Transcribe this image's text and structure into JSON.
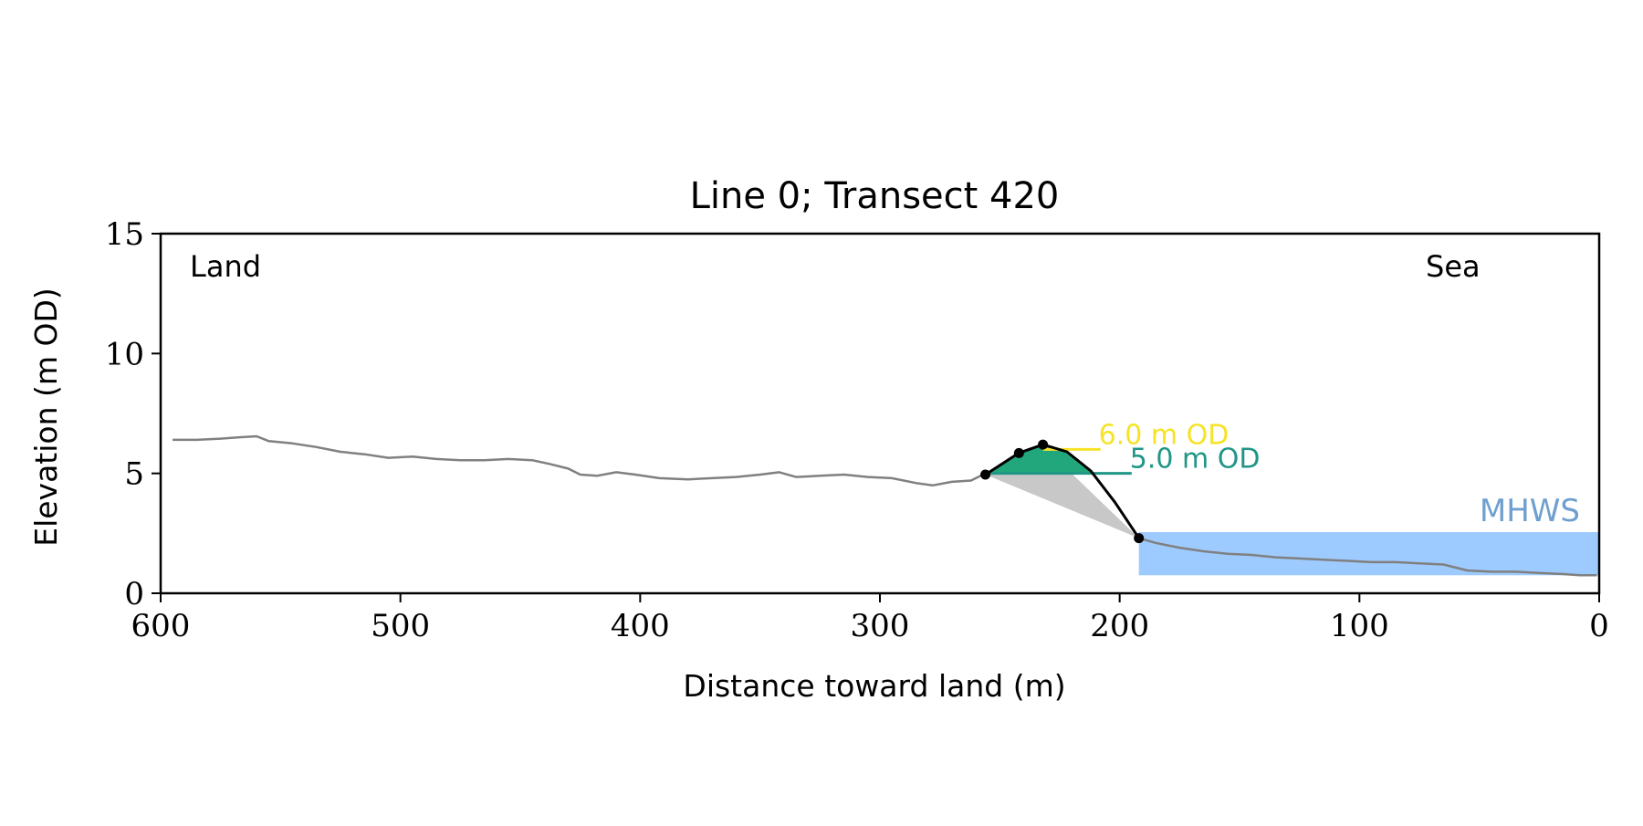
{
  "chart_data": {
    "type": "line",
    "title": "Line 0; Transect 420",
    "xlabel": "Distance toward land (m)",
    "ylabel": "Elevation (m OD)",
    "xlim": [
      600,
      0
    ],
    "ylim": [
      0,
      15
    ],
    "x_ticks": [
      600,
      500,
      400,
      300,
      200,
      100,
      0
    ],
    "y_ticks": [
      0,
      5,
      10,
      15
    ],
    "grid": false,
    "corner_labels": {
      "left": "Land",
      "right": "Sea"
    },
    "colors": {
      "profile": "#808080",
      "dune": "#000000",
      "dune_fill": "#21a77b",
      "toe_triangle": "#c8c8c8",
      "sea": "#9ecbff",
      "mhws_label": "#6f9fd0",
      "level_6": "#f6e325",
      "level_5": "#1f9688"
    },
    "series": [
      {
        "values": [
          [
            595,
            6.4
          ],
          [
            585,
            6.4
          ],
          [
            575,
            6.45
          ],
          [
            568,
            6.5
          ],
          [
            560,
            6.55
          ],
          [
            555,
            6.35
          ],
          [
            545,
            6.25
          ],
          [
            535,
            6.1
          ],
          [
            525,
            5.9
          ],
          [
            515,
            5.8
          ],
          [
            505,
            5.65
          ],
          [
            495,
            5.7
          ],
          [
            485,
            5.6
          ],
          [
            475,
            5.55
          ],
          [
            465,
            5.55
          ],
          [
            455,
            5.6
          ],
          [
            445,
            5.55
          ],
          [
            438,
            5.4
          ],
          [
            430,
            5.2
          ],
          [
            425,
            4.95
          ],
          [
            418,
            4.9
          ],
          [
            410,
            5.05
          ],
          [
            402,
            4.95
          ],
          [
            392,
            4.8
          ],
          [
            380,
            4.75
          ],
          [
            370,
            4.8
          ],
          [
            360,
            4.85
          ],
          [
            350,
            4.95
          ],
          [
            342,
            5.05
          ],
          [
            335,
            4.85
          ],
          [
            325,
            4.9
          ],
          [
            315,
            4.95
          ],
          [
            305,
            4.85
          ],
          [
            295,
            4.8
          ],
          [
            285,
            4.6
          ],
          [
            278,
            4.5
          ],
          [
            270,
            4.65
          ],
          [
            262,
            4.7
          ],
          [
            257,
            4.95
          ]
        ]
      },
      {
        "values": [
          [
            192,
            2.3
          ],
          [
            185,
            2.1
          ],
          [
            175,
            1.9
          ],
          [
            165,
            1.75
          ],
          [
            155,
            1.65
          ],
          [
            145,
            1.6
          ],
          [
            135,
            1.5
          ],
          [
            125,
            1.45
          ],
          [
            115,
            1.4
          ],
          [
            105,
            1.35
          ],
          [
            95,
            1.3
          ],
          [
            85,
            1.3
          ],
          [
            75,
            1.25
          ],
          [
            65,
            1.2
          ],
          [
            55,
            0.95
          ],
          [
            45,
            0.9
          ],
          [
            35,
            0.9
          ],
          [
            25,
            0.85
          ],
          [
            15,
            0.8
          ],
          [
            8,
            0.75
          ],
          [
            1,
            0.75
          ]
        ]
      }
    ],
    "dune": {
      "toe": [
        256,
        4.95
      ],
      "mid": [
        242,
        5.85
      ],
      "crest": [
        232,
        6.2
      ],
      "base": [
        192,
        2.3
      ],
      "curve": [
        [
          256,
          4.95
        ],
        [
          242,
          5.85
        ],
        [
          232,
          6.2
        ],
        [
          222,
          5.9
        ],
        [
          212,
          5.1
        ],
        [
          202,
          3.8
        ],
        [
          192,
          2.3
        ]
      ],
      "fill_above_m": 5.0
    },
    "levels": [
      {
        "label": "6.0 m OD",
        "y": 6.0,
        "x_start": 232,
        "x_end": 208
      },
      {
        "label": "5.0 m OD",
        "y": 5.0,
        "x_start": 256,
        "x_end": 195
      }
    ],
    "mhws": {
      "label": "MHWS",
      "y": 2.55,
      "x_start": 192,
      "x_end": 0
    }
  }
}
